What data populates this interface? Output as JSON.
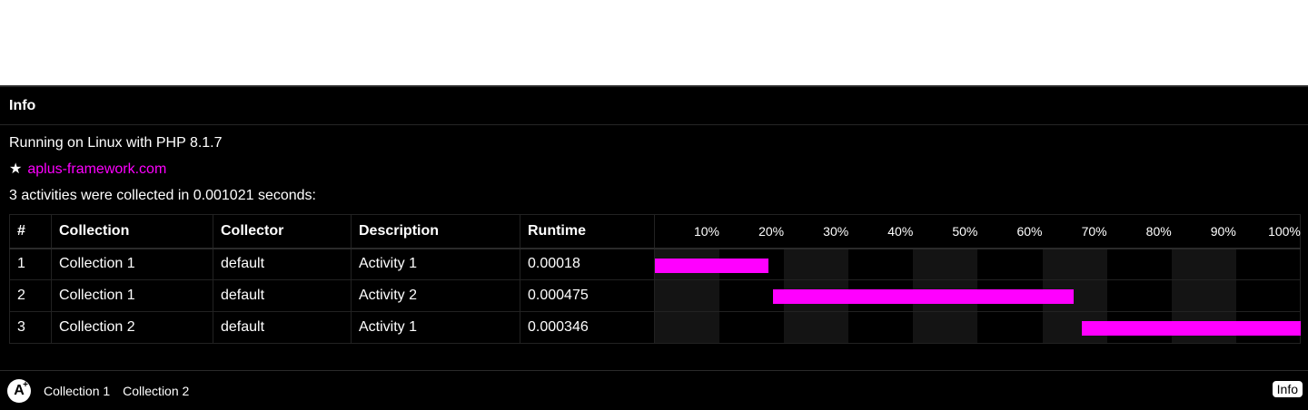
{
  "panel": {
    "title": "Info"
  },
  "info": {
    "running_text": "Running on Linux with PHP 8.1.7",
    "star": "★",
    "link_text": "aplus-framework.com",
    "summary": "3 activities were collected in 0.001021 seconds:"
  },
  "table": {
    "headers": [
      "#",
      "Collection",
      "Collector",
      "Description",
      "Runtime"
    ],
    "ticks": [
      "10%",
      "20%",
      "30%",
      "40%",
      "50%",
      "60%",
      "70%",
      "80%",
      "90%",
      "100%"
    ],
    "rows": [
      {
        "n": "1",
        "collection": "Collection 1",
        "collector": "default",
        "description": "Activity 1",
        "runtime": "0.00018",
        "start_pct": 0,
        "width_pct": 17.6
      },
      {
        "n": "2",
        "collection": "Collection 1",
        "collector": "default",
        "description": "Activity 2",
        "runtime": "0.000475",
        "start_pct": 18.3,
        "width_pct": 46.5
      },
      {
        "n": "3",
        "collection": "Collection 2",
        "collector": "default",
        "description": "Activity 1",
        "runtime": "0.000346",
        "start_pct": 66.1,
        "width_pct": 33.9
      }
    ]
  },
  "footer": {
    "logo_letter": "A",
    "logo_plus": "+",
    "links": [
      "Collection 1",
      "Collection 2"
    ],
    "info_button": "Info"
  },
  "colors": {
    "accent": "#ff00ff",
    "background": "#000000"
  }
}
